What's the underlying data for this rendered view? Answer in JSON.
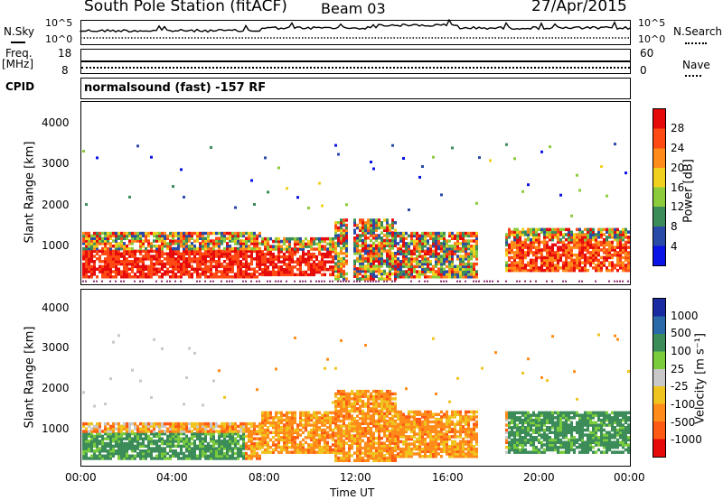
{
  "header": {
    "station": "South Pole Station (fitACF)",
    "beam": "Beam 03",
    "date": "27/Apr/2015"
  },
  "left_labels": {
    "nsky": "N.Sky",
    "freq": "Freq.",
    "freq_unit": "[MHz]",
    "cpid": "CPID"
  },
  "right_labels": {
    "nsearch": "N.Search",
    "nave": "Nave"
  },
  "noise_panel": {
    "left_ticks": [
      "10^5",
      "10^0"
    ],
    "right_ticks": [
      "10^5",
      "10^0"
    ]
  },
  "freq_panel": {
    "left_ticks": [
      "18",
      "8"
    ],
    "right_ticks": [
      "60",
      "0"
    ]
  },
  "cpid_text": "normalsound (fast) -157 RF",
  "x_axis": {
    "label": "Time UT",
    "ticks": [
      "00:00",
      "04:00",
      "08:00",
      "12:00",
      "16:00",
      "20:00",
      "00:00"
    ]
  },
  "y_axis": {
    "label": "Slant Range [km]",
    "ticks": [
      "1000",
      "2000",
      "3000",
      "4000"
    ]
  },
  "power_scale": {
    "label": "Power [dB]",
    "ticks": [
      "4",
      "8",
      "12",
      "16",
      "20",
      "24",
      "28"
    ],
    "colors": [
      "#0a14e6",
      "#2a4aa8",
      "#3c8c5a",
      "#8ccc3c",
      "#f0d21e",
      "#ff8c1a",
      "#ff4a14",
      "#e60a0a"
    ]
  },
  "velocity_scale": {
    "label": "Velocity [m s⁻¹]",
    "ticks": [
      "1000",
      "500",
      "100",
      "25",
      "-25",
      "-100",
      "-500",
      "-1000"
    ],
    "colors": [
      "#1a2aa0",
      "#2a6aa8",
      "#3c8c5a",
      "#7acc3c",
      "#c8c8c8",
      "#f0c41e",
      "#ff8c1a",
      "#ff5a14",
      "#e60a0a"
    ]
  },
  "chart_data": {
    "type": "heatmap",
    "x_range": [
      "00:00",
      "00:00"
    ],
    "ylim": [
      180,
      4500
    ],
    "panels": [
      {
        "name": "Power",
        "unit": "dB",
        "range": [
          0,
          30
        ]
      },
      {
        "name": "Velocity",
        "unit": "m s-1",
        "range": [
          -1000,
          1000
        ]
      }
    ]
  }
}
